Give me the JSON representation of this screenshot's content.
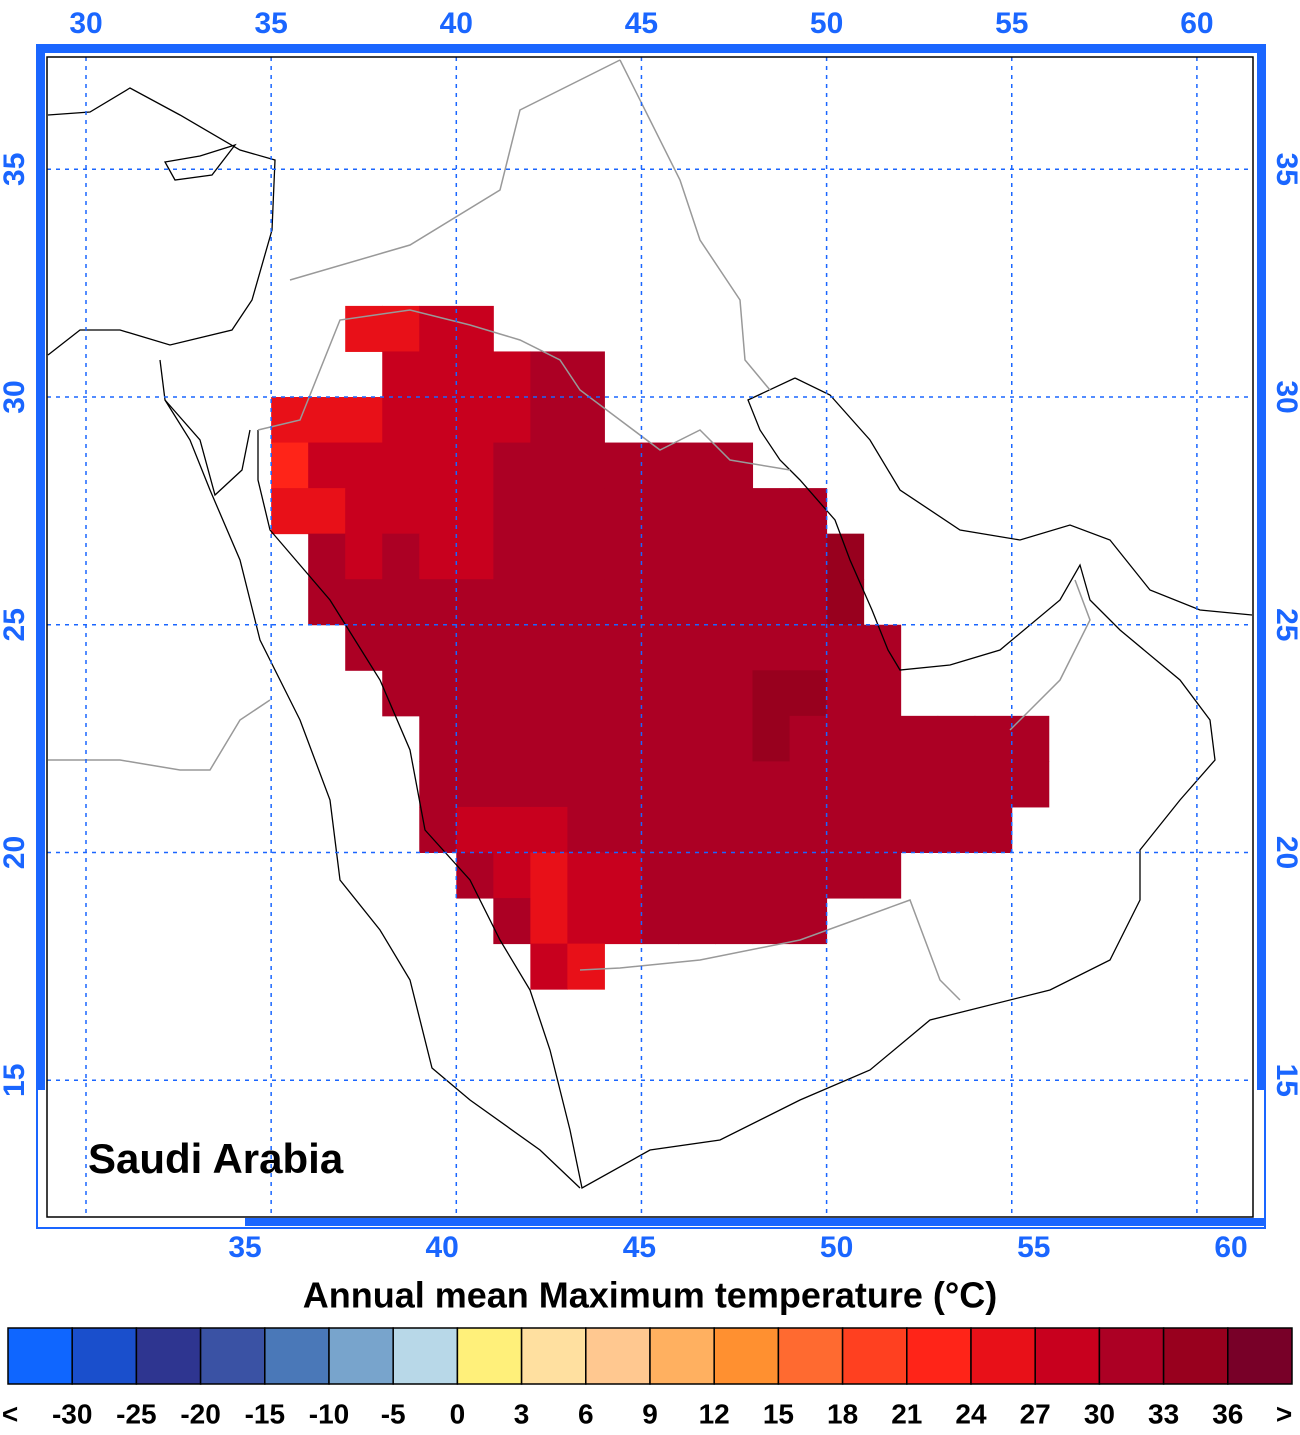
{
  "map": {
    "region_label": "Saudi Arabia",
    "title": "Annual mean Maximum temperature (°C)",
    "top_ticks": [
      30,
      35,
      40,
      45,
      50,
      55,
      60
    ],
    "bottom_ticks": [
      35,
      40,
      45,
      50,
      55,
      60
    ],
    "left_ticks": [
      35,
      30,
      25,
      20,
      15
    ],
    "right_ticks": [
      35,
      30,
      25,
      20,
      15
    ],
    "colorbar": {
      "labels": [
        "<",
        -30,
        -25,
        -20,
        -15,
        -10,
        -5,
        0,
        3,
        6,
        9,
        12,
        15,
        18,
        21,
        24,
        27,
        30,
        33,
        36,
        ">"
      ],
      "colors": [
        "#0f66ff",
        "#1a4fcc",
        "#2e3590",
        "#3a52a4",
        "#4a78b8",
        "#78a4cc",
        "#b8d8e8",
        "#fff07a",
        "#ffe0a0",
        "#ffc890",
        "#ffb060",
        "#ff9030",
        "#ff6a30",
        "#ff4020",
        "#ff2418",
        "#e81018",
        "#c8001e",
        "#ac0024",
        "#98001e",
        "#780028"
      ]
    },
    "cells": {
      "lon": [
        35.5,
        36.5,
        37.5,
        38.5,
        39.5,
        40.5,
        41.5,
        42.5,
        43.5,
        44.5,
        45.5,
        46.5,
        47.5,
        48.5,
        49.5,
        50.5,
        51.5,
        52.5,
        53.5,
        54.5,
        55.5
      ],
      "lat": [
        31.5,
        30.5,
        29.5,
        28.5,
        27.5,
        26.5,
        25.5,
        24.5,
        23.5,
        22.5,
        21.5,
        20.5,
        19.5,
        18.5,
        17.5
      ],
      "values": [
        [
          null,
          null,
          25,
          25,
          28,
          28,
          null,
          null,
          null,
          null,
          null,
          null,
          null,
          null,
          null,
          null,
          null,
          null,
          null,
          null,
          null
        ],
        [
          null,
          null,
          null,
          28,
          28,
          28,
          28,
          31,
          31,
          null,
          null,
          null,
          null,
          null,
          null,
          null,
          null,
          null,
          null,
          null,
          null
        ],
        [
          25,
          25,
          25,
          28,
          28,
          28,
          28,
          31,
          31,
          null,
          null,
          null,
          null,
          null,
          null,
          null,
          null,
          null,
          null,
          null,
          null
        ],
        [
          22,
          28,
          28,
          28,
          28,
          28,
          31,
          31,
          31,
          31,
          31,
          31,
          31,
          null,
          null,
          null,
          null,
          null,
          null,
          null,
          null
        ],
        [
          25,
          25,
          28,
          28,
          28,
          28,
          31,
          31,
          31,
          31,
          31,
          31,
          31,
          31,
          31,
          null,
          null,
          null,
          null,
          null,
          null
        ],
        [
          null,
          31,
          28,
          31,
          28,
          28,
          31,
          31,
          31,
          31,
          31,
          31,
          31,
          31,
          31,
          34,
          null,
          null,
          null,
          null,
          null
        ],
        [
          null,
          31,
          31,
          31,
          31,
          31,
          31,
          31,
          31,
          31,
          31,
          31,
          31,
          31,
          31,
          34,
          null,
          null,
          null,
          null,
          null
        ],
        [
          null,
          null,
          31,
          31,
          31,
          31,
          31,
          31,
          31,
          31,
          31,
          31,
          31,
          31,
          31,
          31,
          31,
          null,
          null,
          null,
          null
        ],
        [
          null,
          null,
          null,
          31,
          31,
          31,
          31,
          31,
          31,
          31,
          31,
          31,
          31,
          34,
          34,
          31,
          31,
          null,
          null,
          null,
          null
        ],
        [
          null,
          null,
          null,
          null,
          31,
          31,
          31,
          31,
          31,
          31,
          31,
          31,
          31,
          34,
          31,
          31,
          31,
          31,
          31,
          31,
          31
        ],
        [
          null,
          null,
          null,
          null,
          31,
          31,
          31,
          31,
          31,
          31,
          31,
          31,
          31,
          31,
          31,
          31,
          31,
          31,
          31,
          31,
          31
        ],
        [
          null,
          null,
          null,
          null,
          31,
          28,
          28,
          28,
          31,
          31,
          31,
          31,
          31,
          31,
          31,
          31,
          31,
          31,
          31,
          31,
          null
        ],
        [
          null,
          null,
          null,
          null,
          null,
          31,
          28,
          25,
          28,
          28,
          31,
          31,
          31,
          31,
          31,
          31,
          31,
          null,
          null,
          null,
          null
        ],
        [
          null,
          null,
          null,
          null,
          null,
          null,
          31,
          25,
          28,
          28,
          31,
          31,
          31,
          31,
          31,
          null,
          null,
          null,
          null,
          null,
          null
        ],
        [
          null,
          null,
          null,
          null,
          null,
          null,
          null,
          28,
          25,
          null,
          null,
          null,
          null,
          null,
          null,
          null,
          null,
          null,
          null,
          null,
          null
        ]
      ]
    }
  }
}
